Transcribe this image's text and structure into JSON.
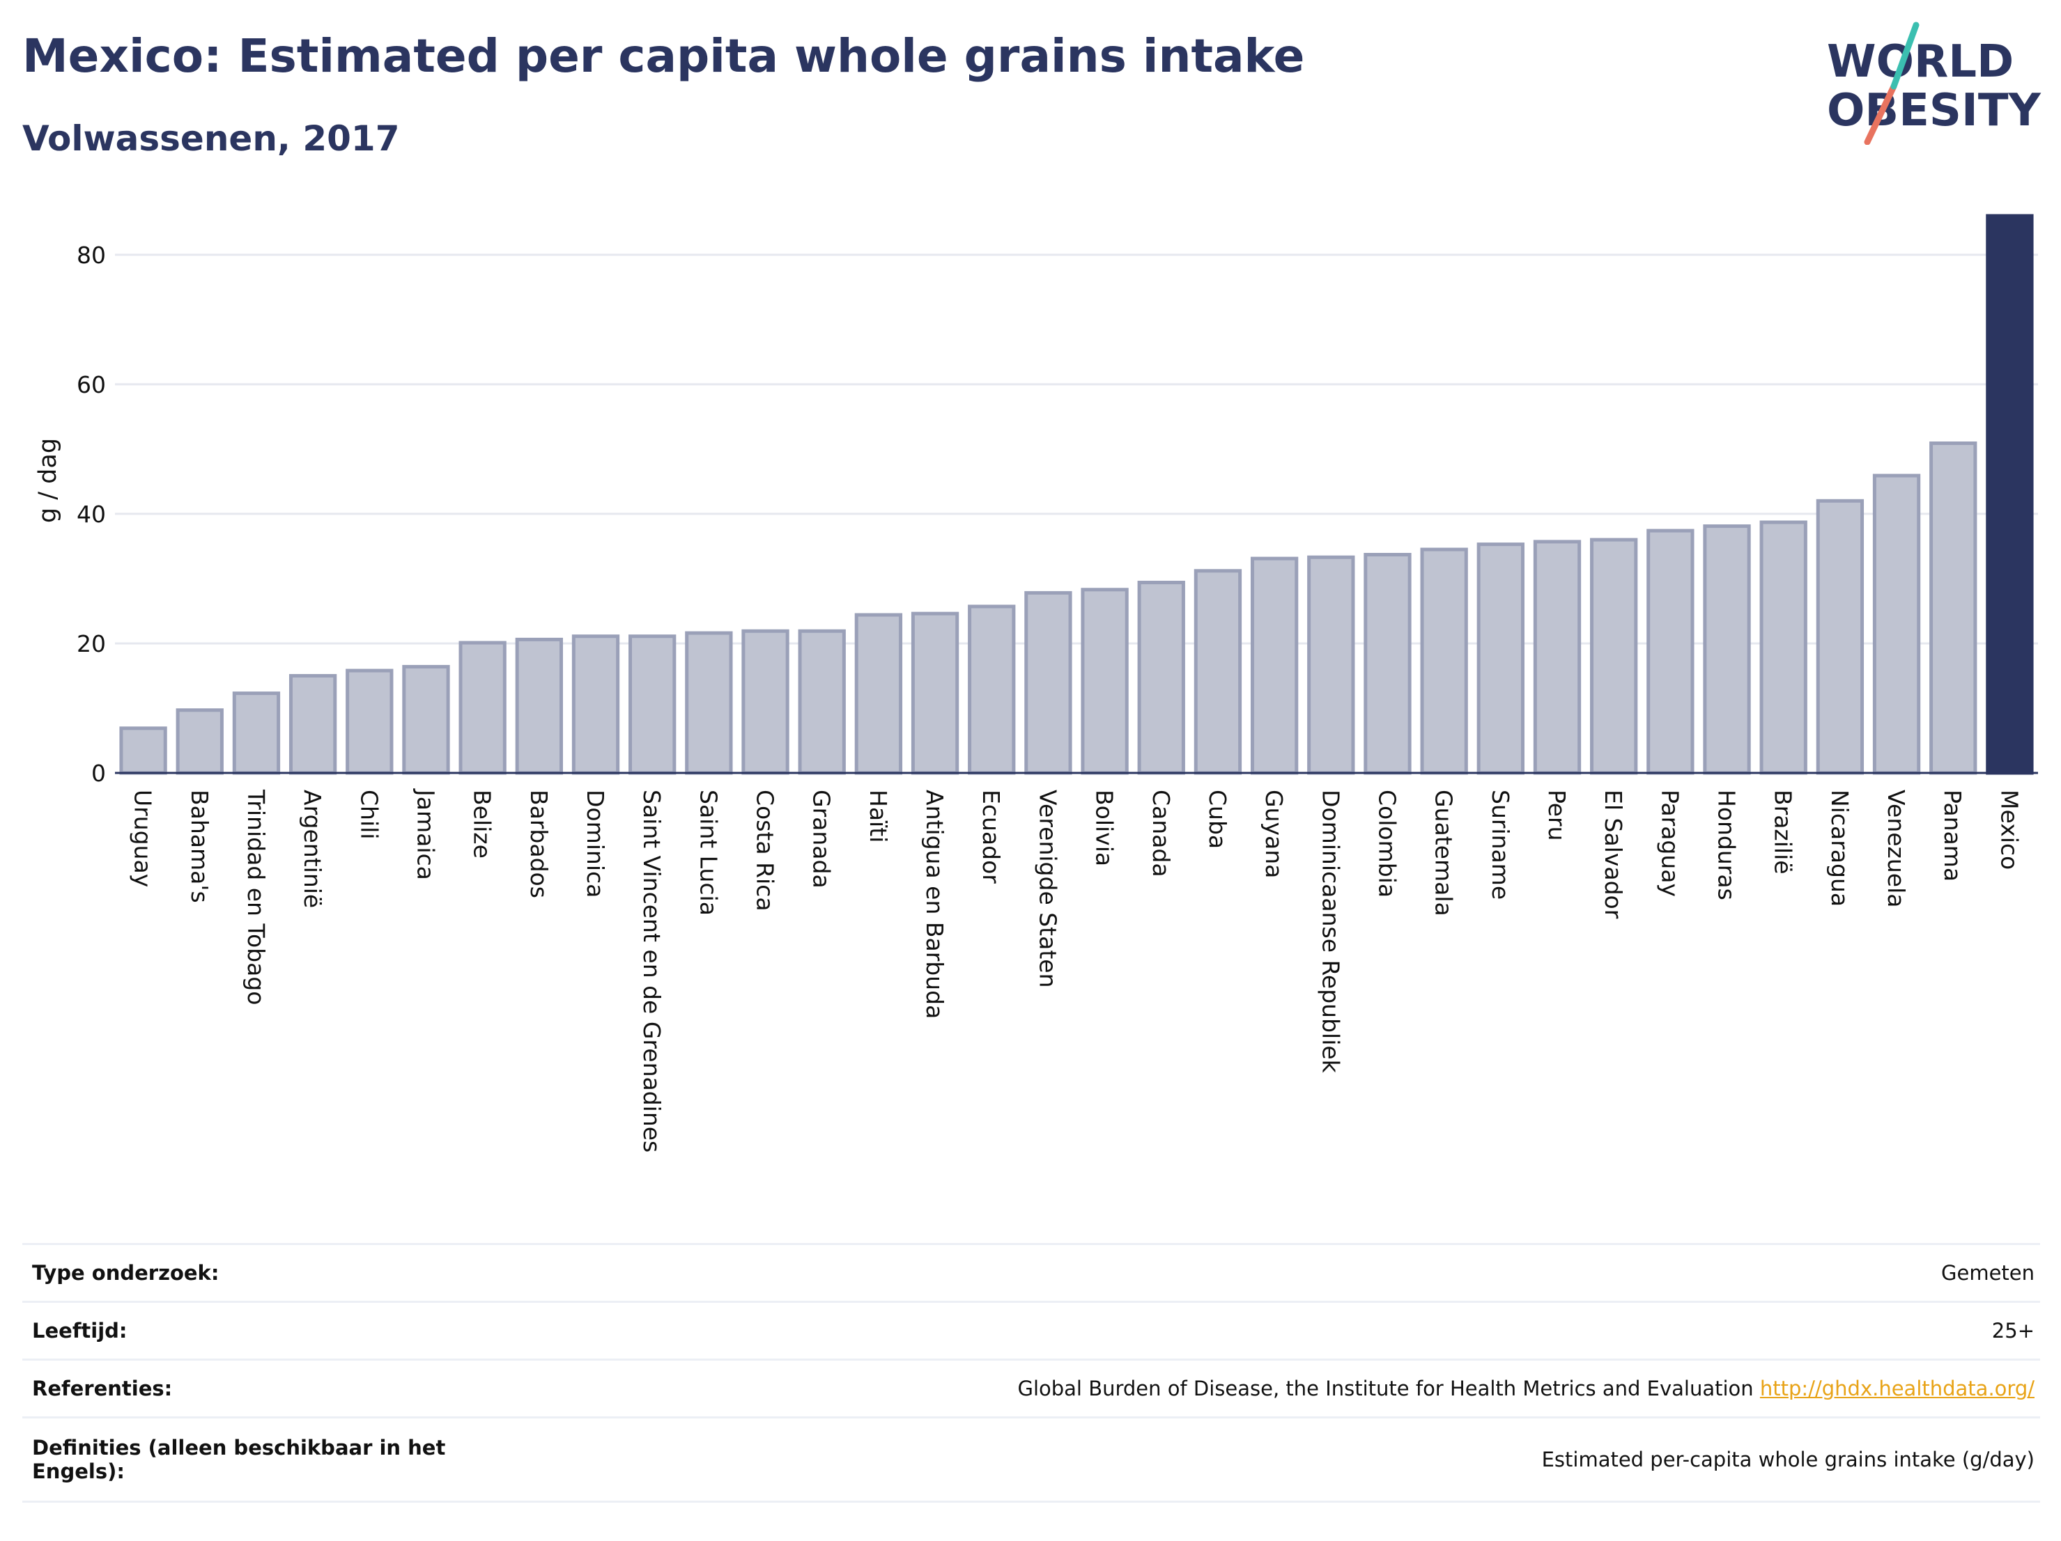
{
  "header": {
    "title": "Mexico: Estimated per capita whole grains intake",
    "subtitle": "Volwassenen, 2017"
  },
  "logo": {
    "line1": "WORLD",
    "line2": "OBESITY"
  },
  "chart_data": {
    "type": "bar",
    "title": "Mexico: Estimated per capita whole grains intake",
    "subtitle": "Volwassenen, 2017",
    "xlabel": "",
    "ylabel": "g / dag",
    "ylim": [
      0,
      86
    ],
    "yticks": [
      0,
      20,
      40,
      60,
      80
    ],
    "grid": true,
    "legend": "none",
    "highlight": "Mexico",
    "colors": {
      "bar": "#bfc3d1",
      "bar_border": "#9aa0b8",
      "highlight": "#2b3560",
      "grid": "#e6e8ef",
      "axis": "#2b3560"
    },
    "categories": [
      "Uruguay",
      "Bahama's",
      "Trinidad en Tobago",
      "Argentinië",
      "Chili",
      "Jamaica",
      "Belize",
      "Barbados",
      "Dominica",
      "Saint Vincent en de Grenadines",
      "Saint Lucia",
      "Costa Rica",
      "Granada",
      "Haïti",
      "Antigua en Barbuda",
      "Ecuador",
      "Verenigde Staten",
      "Bolivia",
      "Canada",
      "Cuba",
      "Guyana",
      "Dominicaanse Republiek",
      "Colombia",
      "Guatemala",
      "Suriname",
      "Peru",
      "El Salvador",
      "Paraguay",
      "Honduras",
      "Brazilië",
      "Nicaragua",
      "Venezuela",
      "Panama",
      "Mexico"
    ],
    "values": [
      6.9,
      9.7,
      12.3,
      15.0,
      15.8,
      16.4,
      20.1,
      20.6,
      21.1,
      21.1,
      21.6,
      21.9,
      21.9,
      24.4,
      24.6,
      25.7,
      27.8,
      28.3,
      29.4,
      31.2,
      33.1,
      33.3,
      33.7,
      34.5,
      35.3,
      35.7,
      36.0,
      37.4,
      38.1,
      38.7,
      42.0,
      45.9,
      50.9,
      86.0
    ]
  },
  "info_table": [
    {
      "label": "Type onderzoek:",
      "value": "Gemeten"
    },
    {
      "label": "Leeftijd:",
      "value": "25+"
    },
    {
      "label": "Referenties:",
      "value": "Global Burden of Disease, the Institute for Health Metrics and Evaluation",
      "link": "http://ghdx.healthdata.org/"
    },
    {
      "label": "Definities (alleen beschikbaar in het Engels):",
      "value": "Estimated per-capita whole grains intake (g/day)"
    }
  ]
}
